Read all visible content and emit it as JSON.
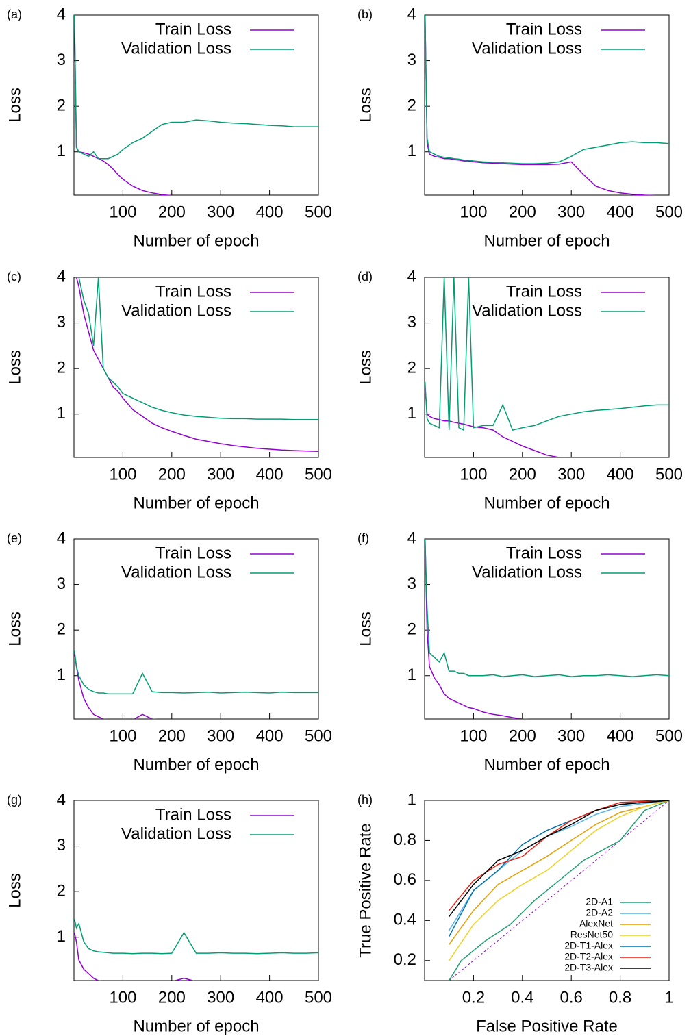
{
  "chart_data": [
    {
      "type": "line",
      "label": "(a)",
      "ylabel": "Loss",
      "xlabel": "Number of epoch",
      "xlim": [
        0,
        500
      ],
      "ylim": [
        0.05,
        4
      ],
      "xticks": [
        100,
        200,
        300,
        400,
        500
      ],
      "yticks": [
        1,
        2,
        3,
        4
      ],
      "legend": "upper right",
      "x": [
        1,
        5,
        10,
        20,
        30,
        40,
        50,
        60,
        70,
        80,
        90,
        100,
        120,
        140,
        160,
        180,
        200,
        225,
        250,
        275,
        300,
        325,
        350,
        375,
        400,
        425,
        450,
        475,
        500
      ],
      "series": [
        {
          "name": "Train Loss",
          "color": "#9400d3",
          "values": [
            4,
            1.1,
            1.0,
            0.98,
            0.95,
            0.9,
            0.85,
            0.8,
            0.72,
            0.62,
            0.5,
            0.4,
            0.25,
            0.15,
            0.1,
            0.06,
            0.04,
            0.03,
            0.03,
            0.03,
            0.03,
            0.03,
            0.03,
            0.03,
            0.03,
            0.03,
            0.03,
            0.03,
            0.03
          ]
        },
        {
          "name": "Validation Loss",
          "color": "#009e73",
          "values": [
            4,
            1.1,
            1.0,
            0.95,
            0.9,
            1.0,
            0.85,
            0.85,
            0.85,
            0.9,
            0.95,
            1.05,
            1.2,
            1.3,
            1.45,
            1.6,
            1.65,
            1.65,
            1.7,
            1.68,
            1.65,
            1.63,
            1.62,
            1.6,
            1.58,
            1.57,
            1.55,
            1.55,
            1.55
          ]
        }
      ]
    },
    {
      "type": "line",
      "label": "(b)",
      "ylabel": "Loss",
      "xlabel": "Number of epoch",
      "xlim": [
        0,
        500
      ],
      "ylim": [
        0.05,
        4
      ],
      "xticks": [
        100,
        200,
        300,
        400,
        500
      ],
      "yticks": [
        1,
        2,
        3,
        4
      ],
      "legend": "upper right",
      "x": [
        1,
        5,
        10,
        20,
        30,
        40,
        50,
        60,
        70,
        80,
        90,
        100,
        120,
        140,
        160,
        180,
        200,
        225,
        250,
        275,
        300,
        325,
        350,
        375,
        400,
        425,
        450,
        475,
        500
      ],
      "series": [
        {
          "name": "Train Loss",
          "color": "#9400d3",
          "values": [
            4,
            1.2,
            0.95,
            0.9,
            0.88,
            0.85,
            0.85,
            0.83,
            0.82,
            0.8,
            0.8,
            0.78,
            0.76,
            0.75,
            0.74,
            0.73,
            0.72,
            0.72,
            0.72,
            0.73,
            0.78,
            0.5,
            0.25,
            0.15,
            0.1,
            0.07,
            0.05,
            0.04,
            0.03
          ]
        },
        {
          "name": "Validation Loss",
          "color": "#009e73",
          "values": [
            4,
            1.3,
            1.0,
            0.95,
            0.9,
            0.88,
            0.87,
            0.85,
            0.84,
            0.82,
            0.82,
            0.8,
            0.78,
            0.77,
            0.76,
            0.75,
            0.74,
            0.74,
            0.75,
            0.78,
            0.9,
            1.05,
            1.1,
            1.15,
            1.2,
            1.22,
            1.2,
            1.2,
            1.18
          ]
        }
      ]
    },
    {
      "type": "line",
      "label": "(c)",
      "ylabel": "Loss",
      "xlabel": "Number of epoch",
      "xlim": [
        0,
        500
      ],
      "ylim": [
        0.05,
        4
      ],
      "xticks": [
        100,
        200,
        300,
        400,
        500
      ],
      "yticks": [
        1,
        2,
        3,
        4
      ],
      "legend": "upper right",
      "x": [
        1,
        5,
        10,
        20,
        30,
        40,
        50,
        60,
        70,
        80,
        90,
        100,
        120,
        140,
        160,
        180,
        200,
        225,
        250,
        275,
        300,
        325,
        350,
        375,
        400,
        425,
        450,
        475,
        500
      ],
      "series": [
        {
          "name": "Train Loss",
          "color": "#9400d3",
          "values": [
            4,
            4,
            3.8,
            3.2,
            2.8,
            2.4,
            2.2,
            2.0,
            1.8,
            1.6,
            1.5,
            1.35,
            1.1,
            0.95,
            0.8,
            0.7,
            0.62,
            0.53,
            0.45,
            0.4,
            0.35,
            0.31,
            0.28,
            0.25,
            0.23,
            0.21,
            0.2,
            0.19,
            0.18
          ]
        },
        {
          "name": "Validation Loss",
          "color": "#009e73",
          "values": [
            4,
            4,
            4,
            3.5,
            3.2,
            2.5,
            4,
            2.0,
            1.8,
            1.7,
            1.6,
            1.45,
            1.35,
            1.25,
            1.15,
            1.08,
            1.03,
            0.98,
            0.95,
            0.93,
            0.91,
            0.9,
            0.9,
            0.89,
            0.89,
            0.89,
            0.88,
            0.88,
            0.88
          ]
        }
      ]
    },
    {
      "type": "line",
      "label": "(d)",
      "ylabel": "Loss",
      "xlabel": "Number of epoch",
      "xlim": [
        0,
        500
      ],
      "ylim": [
        0.05,
        4
      ],
      "xticks": [
        100,
        200,
        300,
        400,
        500
      ],
      "yticks": [
        1,
        2,
        3,
        4
      ],
      "legend": "upper right",
      "x": [
        1,
        5,
        10,
        20,
        30,
        40,
        50,
        60,
        70,
        80,
        90,
        100,
        120,
        140,
        160,
        180,
        200,
        225,
        250,
        275,
        300,
        325,
        350,
        375,
        400,
        425,
        450,
        475,
        500
      ],
      "series": [
        {
          "name": "Train Loss",
          "color": "#9400d3",
          "values": [
            1.6,
            1.0,
            0.95,
            0.9,
            0.88,
            0.85,
            0.85,
            0.82,
            0.8,
            0.78,
            0.75,
            0.72,
            0.7,
            0.65,
            0.5,
            0.4,
            0.3,
            0.2,
            0.1,
            0.05,
            0.03,
            0.03,
            0.03,
            0.03,
            0.03,
            0.03,
            0.03,
            0.03,
            0.03
          ]
        },
        {
          "name": "Validation Loss",
          "color": "#009e73",
          "values": [
            1.7,
            0.9,
            0.8,
            0.75,
            0.7,
            4,
            0.65,
            4,
            0.7,
            0.65,
            4,
            0.7,
            0.75,
            0.75,
            1.2,
            0.65,
            0.7,
            0.75,
            0.85,
            0.95,
            1.0,
            1.05,
            1.08,
            1.1,
            1.12,
            1.15,
            1.18,
            1.2,
            1.2
          ]
        }
      ]
    },
    {
      "type": "line",
      "label": "(e)",
      "ylabel": "Loss",
      "xlabel": "Number of epoch",
      "xlim": [
        0,
        500
      ],
      "ylim": [
        0.05,
        4
      ],
      "xticks": [
        100,
        200,
        300,
        400,
        500
      ],
      "yticks": [
        1,
        2,
        3,
        4
      ],
      "legend": "upper right",
      "x": [
        1,
        5,
        10,
        20,
        30,
        40,
        50,
        60,
        70,
        80,
        90,
        100,
        120,
        140,
        160,
        180,
        200,
        225,
        250,
        275,
        300,
        325,
        350,
        375,
        400,
        425,
        450,
        475,
        500
      ],
      "series": [
        {
          "name": "Train Loss",
          "color": "#9400d3",
          "values": [
            1.5,
            1.2,
            0.9,
            0.5,
            0.3,
            0.15,
            0.1,
            0.05,
            0.03,
            0.03,
            0.03,
            0.03,
            0.03,
            0.15,
            0.05,
            0.03,
            0.03,
            0.03,
            0.03,
            0.03,
            0.03,
            0.03,
            0.03,
            0.03,
            0.03,
            0.03,
            0.03,
            0.03,
            0.03
          ]
        },
        {
          "name": "Validation Loss",
          "color": "#009e73",
          "values": [
            1.55,
            1.2,
            1.0,
            0.8,
            0.7,
            0.65,
            0.62,
            0.62,
            0.6,
            0.6,
            0.6,
            0.6,
            0.6,
            1.05,
            0.65,
            0.63,
            0.63,
            0.62,
            0.63,
            0.64,
            0.62,
            0.63,
            0.64,
            0.63,
            0.62,
            0.64,
            0.63,
            0.63,
            0.63
          ]
        }
      ]
    },
    {
      "type": "line",
      "label": "(f)",
      "ylabel": "Loss",
      "xlabel": "Number of epoch",
      "xlim": [
        0,
        500
      ],
      "ylim": [
        0.05,
        4
      ],
      "xticks": [
        100,
        200,
        300,
        400,
        500
      ],
      "yticks": [
        1,
        2,
        3,
        4
      ],
      "legend": "upper right",
      "x": [
        1,
        5,
        10,
        20,
        30,
        40,
        50,
        60,
        70,
        80,
        90,
        100,
        120,
        140,
        160,
        180,
        200,
        225,
        250,
        275,
        300,
        325,
        350,
        375,
        400,
        425,
        450,
        475,
        500
      ],
      "series": [
        {
          "name": "Train Loss",
          "color": "#9400d3",
          "values": [
            4,
            2,
            1.2,
            0.95,
            0.8,
            0.6,
            0.5,
            0.45,
            0.4,
            0.35,
            0.3,
            0.28,
            0.2,
            0.15,
            0.12,
            0.08,
            0.05,
            0.03,
            0.03,
            0.03,
            0.03,
            0.03,
            0.03,
            0.03,
            0.03,
            0.03,
            0.03,
            0.03,
            0.03
          ]
        },
        {
          "name": "Validation Loss",
          "color": "#009e73",
          "values": [
            4,
            2.5,
            1.5,
            1.4,
            1.3,
            1.5,
            1.1,
            1.1,
            1.05,
            1.05,
            1.0,
            1.0,
            1.0,
            1.02,
            0.98,
            1.0,
            1.02,
            0.98,
            1.0,
            1.02,
            0.98,
            1.0,
            1.0,
            1.02,
            1.0,
            0.98,
            1.0,
            1.02,
            1.0
          ]
        }
      ]
    },
    {
      "type": "line",
      "label": "(g)",
      "ylabel": "Loss",
      "xlabel": "Number of epoch",
      "xlim": [
        0,
        500
      ],
      "ylim": [
        0.05,
        4
      ],
      "xticks": [
        100,
        200,
        300,
        400,
        500
      ],
      "yticks": [
        1,
        2,
        3,
        4
      ],
      "legend": "upper right",
      "x": [
        1,
        5,
        10,
        20,
        30,
        40,
        50,
        60,
        70,
        80,
        90,
        100,
        120,
        140,
        160,
        180,
        200,
        225,
        250,
        275,
        300,
        325,
        350,
        375,
        400,
        425,
        450,
        475,
        500
      ],
      "series": [
        {
          "name": "Train Loss",
          "color": "#9400d3",
          "values": [
            1.1,
            0.9,
            0.5,
            0.3,
            0.2,
            0.1,
            0.05,
            0.03,
            0.03,
            0.03,
            0.03,
            0.03,
            0.03,
            0.03,
            0.03,
            0.03,
            0.03,
            0.1,
            0.03,
            0.03,
            0.03,
            0.03,
            0.03,
            0.03,
            0.03,
            0.03,
            0.03,
            0.03,
            0.03
          ]
        },
        {
          "name": "Validation Loss",
          "color": "#009e73",
          "values": [
            1.4,
            1.2,
            1.3,
            0.9,
            0.75,
            0.7,
            0.68,
            0.67,
            0.66,
            0.65,
            0.65,
            0.65,
            0.64,
            0.65,
            0.65,
            0.64,
            0.65,
            1.1,
            0.65,
            0.65,
            0.66,
            0.65,
            0.65,
            0.64,
            0.65,
            0.66,
            0.65,
            0.65,
            0.66
          ]
        }
      ]
    },
    {
      "type": "roc",
      "label": "(h)",
      "ylabel": "True Positive Rate",
      "xlabel": "False Positive Rate",
      "xlim": [
        0,
        1
      ],
      "ylim": [
        0.1,
        1
      ],
      "xticks": [
        0.2,
        0.4,
        0.6,
        0.8,
        1
      ],
      "yticks": [
        0.2,
        0.4,
        0.6,
        0.8,
        1
      ],
      "legend": "lower right",
      "series": [
        {
          "name": "2D-A1",
          "color": "#1f9e70",
          "x": [
            0.1,
            0.15,
            0.25,
            0.35,
            0.45,
            0.55,
            0.65,
            0.8,
            0.9,
            1
          ],
          "values": [
            0.1,
            0.2,
            0.3,
            0.38,
            0.5,
            0.6,
            0.7,
            0.8,
            0.95,
            1
          ]
        },
        {
          "name": "2D-A2",
          "color": "#56b4e9",
          "x": [
            0.1,
            0.2,
            0.3,
            0.4,
            0.5,
            0.6,
            0.7,
            0.8,
            1
          ],
          "values": [
            0.35,
            0.55,
            0.65,
            0.75,
            0.82,
            0.87,
            0.93,
            0.97,
            1
          ]
        },
        {
          "name": "AlexNet",
          "color": "#e69f00",
          "x": [
            0.1,
            0.2,
            0.3,
            0.4,
            0.5,
            0.6,
            0.7,
            0.8,
            0.9,
            1
          ],
          "values": [
            0.28,
            0.45,
            0.58,
            0.65,
            0.72,
            0.8,
            0.88,
            0.94,
            0.97,
            1
          ]
        },
        {
          "name": "ResNet50",
          "color": "#f0d020",
          "x": [
            0.1,
            0.2,
            0.3,
            0.4,
            0.5,
            0.6,
            0.7,
            0.8,
            0.9,
            1
          ],
          "values": [
            0.2,
            0.38,
            0.5,
            0.58,
            0.65,
            0.75,
            0.85,
            0.92,
            0.97,
            1
          ]
        },
        {
          "name": "2D-T1-Alex",
          "color": "#0072b2",
          "x": [
            0.1,
            0.2,
            0.3,
            0.4,
            0.5,
            0.6,
            0.7,
            0.8,
            1
          ],
          "values": [
            0.32,
            0.55,
            0.65,
            0.78,
            0.85,
            0.9,
            0.95,
            0.98,
            1
          ]
        },
        {
          "name": "2D-T2-Alex",
          "color": "#e51e10",
          "x": [
            0.1,
            0.2,
            0.3,
            0.4,
            0.5,
            0.6,
            0.7,
            0.8,
            1
          ],
          "values": [
            0.45,
            0.6,
            0.68,
            0.72,
            0.82,
            0.9,
            0.95,
            0.99,
            1
          ]
        },
        {
          "name": "2D-T3-Alex",
          "color": "#000000",
          "x": [
            0.1,
            0.2,
            0.3,
            0.4,
            0.5,
            0.6,
            0.7,
            0.8,
            1
          ],
          "values": [
            0.42,
            0.58,
            0.7,
            0.75,
            0.82,
            0.88,
            0.95,
            0.98,
            1
          ]
        }
      ]
    }
  ]
}
